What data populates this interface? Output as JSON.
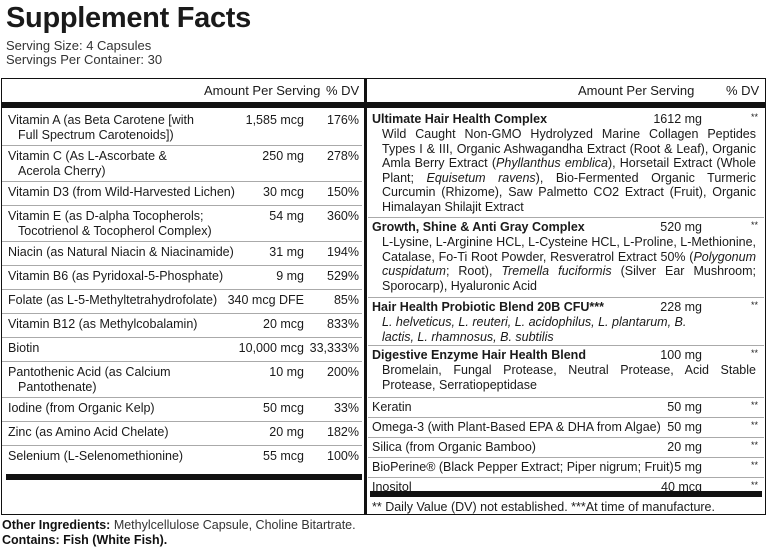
{
  "title": "Supplement Facts",
  "serving_size": "Serving Size: 4 Capsules",
  "servings_per_container": "Servings Per Container: 30",
  "left": {
    "header_amount": "Amount Per Serving",
    "header_dv": "% DV",
    "rows": [
      {
        "name": "Vitamin A (as Beta Carotene [with",
        "name2": "Full Spectrum Carotenoids])",
        "amount": "1,585 mcg",
        "dv": "176%"
      },
      {
        "name": "Vitamin C (As L-Ascorbate &",
        "name2": "Acerola Cherry)",
        "amount": "250 mg",
        "dv": "278%"
      },
      {
        "name": "Vitamin D3 (from Wild-Harvested Lichen)",
        "amount": "30 mcg",
        "dv": "150%"
      },
      {
        "name": "Vitamin E (as D-alpha Tocopherols;",
        "name2": "Tocotrienol & Tocopherol Complex)",
        "amount": "54 mg",
        "dv": "360%"
      },
      {
        "name": "Niacin (as Natural Niacin & Niacinamide)",
        "amount": "31 mg",
        "dv": "194%"
      },
      {
        "name": "Vitamin B6 (as Pyridoxal-5-Phosphate)",
        "amount": "9 mg",
        "dv": "529%"
      },
      {
        "name": "Folate (as L-5-Methyltetrahydrofolate)",
        "amount": "340 mcg DFE",
        "dv": "85%"
      },
      {
        "name": "Vitamin B12 (as Methylcobalamin)",
        "amount": "20 mcg",
        "dv": "833%"
      },
      {
        "name": "Biotin",
        "amount": "10,000 mcg",
        "dv": "33,333%"
      },
      {
        "name": "Pantothenic Acid (as Calcium",
        "name2": "Pantothenate)",
        "amount": "10 mg",
        "dv": "200%"
      },
      {
        "name": "Iodine (from Organic Kelp)",
        "amount": "50 mcg",
        "dv": "33%"
      },
      {
        "name": "Zinc (as Amino Acid Chelate)",
        "amount": "20 mg",
        "dv": "182%"
      },
      {
        "name": "Selenium (L-Selenomethionine)",
        "amount": "55 mcg",
        "dv": "100%"
      }
    ]
  },
  "right": {
    "header_amount": "Amount Per Serving",
    "header_dv": "% DV",
    "rows": [
      {
        "name": "Ultimate Hair Health Complex",
        "bold": true,
        "amount": "1612 mg",
        "dv": "**",
        "desc": [
          {
            "t": "Wild Caught Non-GMO Hydrolyzed Marine Collagen Peptides Types I & III, Organic Ashwagandha Extract (Root & Leaf), Organic Amla Berry Extract ("
          },
          {
            "t": "Phyllanthus emblica",
            "i": true
          },
          {
            "t": "), Horsetail Extract (Whole Plant; "
          },
          {
            "t": "Equisetum ravens",
            "i": true
          },
          {
            "t": "), Bio-Fermented Organic Turmeric Curcumin (Rhizome), Saw Palmetto CO2 Extract (Fruit), Organic Himalayan Shilajit Extract"
          }
        ]
      },
      {
        "name": "Growth, Shine & Anti Gray Complex",
        "bold": true,
        "amount": "520 mg",
        "dv": "**",
        "desc": [
          {
            "t": "L-Lysine, L-Arginine HCL, L-Cysteine HCL, L-Proline, L-Methionine, Catalase, Fo-Ti Root Powder, Resveratrol Extract 50% ("
          },
          {
            "t": "Polygonum cuspidatum",
            "i": true
          },
          {
            "t": "; Root), "
          },
          {
            "t": "Tremella fuciformis",
            "i": true
          },
          {
            "t": " (Silver Ear Mushroom; Sporocarp), Hyaluronic Acid"
          }
        ]
      },
      {
        "name": "Hair Health Probiotic Blend 20B CFU***",
        "bold": true,
        "amount": "228 mg",
        "dv": "**",
        "italic_desc": true,
        "desc": [
          {
            "t": "L. helveticus, L. reuteri, L. acidophilus, L. plantarum, B. lactis, L. rhamnosus, B. subtilis",
            "i": true
          }
        ]
      },
      {
        "name": "Digestive Enzyme Hair Health Blend",
        "bold": true,
        "amount": "100 mg",
        "dv": "**",
        "desc": [
          {
            "t": "Bromelain, Fungal Protease, Neutral Protease, Acid Stable Protease, Serratiopeptidase"
          }
        ]
      },
      {
        "name": "Keratin",
        "amount": "50 mg",
        "dv": "**"
      },
      {
        "name": "Omega-3 (with Plant-Based EPA & DHA from Algae)",
        "amount": "50 mg",
        "dv": "**"
      },
      {
        "name": "Silica (from Organic Bamboo)",
        "amount": "20 mg",
        "dv": "**"
      },
      {
        "name": "BioPerine® (Black Pepper Extract; Piper nigrum; Fruit)",
        "amount": "5 mg",
        "dv": "**"
      },
      {
        "name": "Inositol",
        "amount": "40 mcg",
        "dv": "**"
      }
    ],
    "footnote": "** Daily Value (DV) not established.   ***At time of manufacture."
  },
  "other_ingredients_label": "Other Ingredients:",
  "other_ingredients": " Methylcellulose Capsule, Choline Bitartrate.",
  "contains": "Contains: Fish (White Fish)."
}
